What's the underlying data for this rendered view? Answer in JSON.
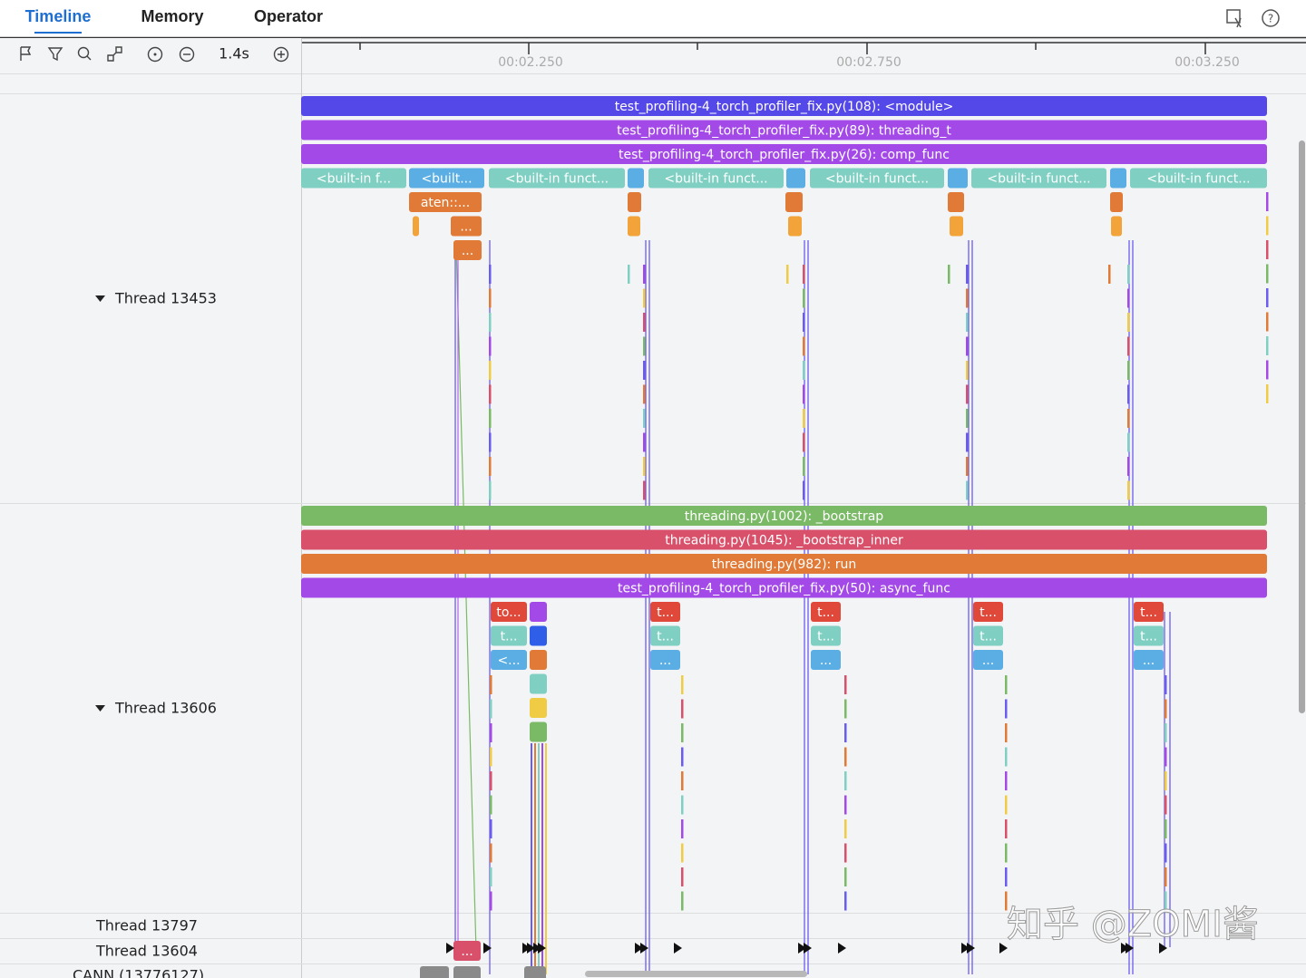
{
  "tabs": [
    "Timeline",
    "Memory",
    "Operator"
  ],
  "toolbar": {
    "zoom": "1.4s"
  },
  "time_axis": {
    "labels": [
      "00:02.250",
      "00:02.750",
      "00:03.250"
    ]
  },
  "threads": [
    {
      "name": "Thread 13453",
      "slices": [
        "test_profiling-4_torch_profiler_fix.py(108): <module>",
        "test_profiling-4_torch_profiler_fix.py(89): threading_t",
        "test_profiling-4_torch_profiler_fix.py(26): comp_func",
        "<built-in f...",
        "<built...",
        "<built-in funct...",
        "<built-in funct...",
        "<built-in funct...",
        "<built-in funct...",
        "<built-in funct...",
        "aten::...",
        "...",
        "..."
      ]
    },
    {
      "name": "Thread 13606",
      "slices": [
        "threading.py(1002): _bootstrap",
        "threading.py(1045): _bootstrap_inner",
        "threading.py(982): run",
        "test_profiling-4_torch_profiler_fix.py(50): async_func",
        "to...",
        "t...",
        "<...",
        "t...",
        "t...",
        "...",
        "t...",
        "t...",
        "...",
        "t...",
        "t...",
        "...",
        "t...",
        "t...",
        "..."
      ]
    },
    {
      "name": "Thread 13797"
    },
    {
      "name": "Thread 13604",
      "slices": [
        "..."
      ]
    },
    {
      "name": "CANN (13776127)"
    }
  ],
  "watermark": "知乎 @ZOMI酱"
}
